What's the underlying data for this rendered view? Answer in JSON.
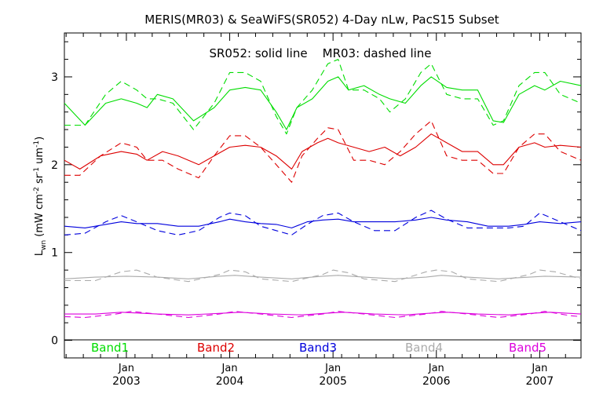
{
  "chart_data": {
    "type": "line",
    "title": "MERIS(MR03) & SeaWiFS(SR052) 4-Day nLw, PacS15 Subset",
    "annotation": "SR052: solid line    MR03: dashed line",
    "ylabel": "L_wn (mW cm^-2 sr^-1 um^-1)",
    "ylim": [
      -0.2,
      3.5
    ],
    "xlim": [
      2002.4,
      2007.4
    ],
    "y_ticks": [
      "0",
      "1",
      "2",
      "3"
    ],
    "x_ticks": [
      {
        "x": 2003.0,
        "month": "Jan",
        "year": "2003"
      },
      {
        "x": 2004.0,
        "month": "Jan",
        "year": "2004"
      },
      {
        "x": 2005.0,
        "month": "Jan",
        "year": "2005"
      },
      {
        "x": 2006.0,
        "month": "Jan",
        "year": "2006"
      },
      {
        "x": 2007.0,
        "month": "Jan",
        "year": "2007"
      }
    ],
    "grid": false,
    "legend_placement": "bottom",
    "series": [
      {
        "name": "Band1",
        "color": "#00dd00",
        "style": "solid",
        "x": [
          2002.4,
          2002.6,
          2002.8,
          2002.95,
          2003.1,
          2003.2,
          2003.3,
          2003.45,
          2003.65,
          2003.85,
          2004.0,
          2004.15,
          2004.3,
          2004.45,
          2004.55,
          2004.65,
          2004.8,
          2004.95,
          2005.05,
          2005.15,
          2005.3,
          2005.45,
          2005.55,
          2005.7,
          2005.85,
          2005.95,
          2006.1,
          2006.25,
          2006.4,
          2006.55,
          2006.65,
          2006.8,
          2006.95,
          2007.05,
          2007.2,
          2007.4
        ],
        "y": [
          2.7,
          2.45,
          2.7,
          2.75,
          2.7,
          2.65,
          2.8,
          2.75,
          2.5,
          2.65,
          2.85,
          2.88,
          2.85,
          2.6,
          2.4,
          2.65,
          2.75,
          2.95,
          3.0,
          2.85,
          2.9,
          2.8,
          2.75,
          2.7,
          2.9,
          3.0,
          2.88,
          2.85,
          2.85,
          2.5,
          2.48,
          2.8,
          2.9,
          2.85,
          2.95,
          2.9
        ]
      },
      {
        "name": "Band1",
        "color": "#00dd00",
        "style": "dashed",
        "x": [
          2002.4,
          2002.6,
          2002.8,
          2002.95,
          2003.1,
          2003.2,
          2003.3,
          2003.45,
          2003.65,
          2003.85,
          2004.0,
          2004.15,
          2004.3,
          2004.45,
          2004.55,
          2004.65,
          2004.8,
          2004.95,
          2005.05,
          2005.15,
          2005.3,
          2005.45,
          2005.55,
          2005.7,
          2005.85,
          2005.95,
          2006.1,
          2006.25,
          2006.4,
          2006.55,
          2006.65,
          2006.8,
          2006.95,
          2007.05,
          2007.2,
          2007.4
        ],
        "y": [
          2.45,
          2.45,
          2.8,
          2.95,
          2.85,
          2.75,
          2.75,
          2.7,
          2.4,
          2.7,
          3.05,
          3.05,
          2.95,
          2.55,
          2.35,
          2.65,
          2.85,
          3.15,
          3.2,
          2.85,
          2.85,
          2.75,
          2.6,
          2.75,
          3.05,
          3.15,
          2.8,
          2.75,
          2.75,
          2.45,
          2.5,
          2.9,
          3.05,
          3.05,
          2.8,
          2.7
        ]
      },
      {
        "name": "Band2",
        "color": "#dd0000",
        "style": "solid",
        "x": [
          2002.4,
          2002.55,
          2002.75,
          2002.95,
          2003.1,
          2003.2,
          2003.35,
          2003.5,
          2003.7,
          2003.85,
          2004.0,
          2004.15,
          2004.3,
          2004.45,
          2004.6,
          2004.7,
          2004.85,
          2004.95,
          2005.05,
          2005.2,
          2005.35,
          2005.5,
          2005.65,
          2005.8,
          2005.95,
          2006.1,
          2006.25,
          2006.4,
          2006.55,
          2006.65,
          2006.8,
          2006.95,
          2007.05,
          2007.2,
          2007.4
        ],
        "y": [
          2.05,
          1.95,
          2.1,
          2.15,
          2.12,
          2.05,
          2.15,
          2.1,
          2.0,
          2.1,
          2.2,
          2.22,
          2.2,
          2.1,
          1.95,
          2.15,
          2.25,
          2.3,
          2.25,
          2.2,
          2.15,
          2.2,
          2.1,
          2.2,
          2.35,
          2.25,
          2.15,
          2.15,
          2.0,
          2.0,
          2.2,
          2.25,
          2.2,
          2.22,
          2.2
        ]
      },
      {
        "name": "Band2",
        "color": "#dd0000",
        "style": "dashed",
        "x": [
          2002.4,
          2002.55,
          2002.75,
          2002.95,
          2003.1,
          2003.2,
          2003.35,
          2003.5,
          2003.7,
          2003.85,
          2004.0,
          2004.15,
          2004.3,
          2004.45,
          2004.6,
          2004.7,
          2004.85,
          2004.95,
          2005.05,
          2005.2,
          2005.35,
          2005.5,
          2005.65,
          2005.8,
          2005.95,
          2006.1,
          2006.25,
          2006.4,
          2006.55,
          2006.65,
          2006.8,
          2006.95,
          2007.05,
          2007.2,
          2007.4
        ],
        "y": [
          1.88,
          1.88,
          2.1,
          2.25,
          2.2,
          2.05,
          2.05,
          1.95,
          1.85,
          2.1,
          2.33,
          2.33,
          2.2,
          2.0,
          1.8,
          2.1,
          2.3,
          2.42,
          2.4,
          2.05,
          2.05,
          2.0,
          2.15,
          2.35,
          2.5,
          2.1,
          2.05,
          2.05,
          1.9,
          1.9,
          2.2,
          2.35,
          2.35,
          2.15,
          2.05
        ]
      },
      {
        "name": "Band3",
        "color": "#0000dd",
        "style": "solid",
        "x": [
          2002.4,
          2002.6,
          2002.8,
          2002.95,
          2003.1,
          2003.3,
          2003.5,
          2003.7,
          2003.9,
          2004.0,
          2004.15,
          2004.3,
          2004.45,
          2004.6,
          2004.75,
          2004.9,
          2005.05,
          2005.2,
          2005.4,
          2005.6,
          2005.8,
          2005.95,
          2006.1,
          2006.3,
          2006.5,
          2006.7,
          2006.85,
          2007.0,
          2007.2,
          2007.4
        ],
        "y": [
          1.3,
          1.28,
          1.32,
          1.35,
          1.33,
          1.33,
          1.3,
          1.3,
          1.35,
          1.38,
          1.35,
          1.33,
          1.32,
          1.28,
          1.35,
          1.37,
          1.38,
          1.35,
          1.35,
          1.35,
          1.37,
          1.4,
          1.37,
          1.35,
          1.3,
          1.3,
          1.32,
          1.35,
          1.33,
          1.35
        ]
      },
      {
        "name": "Band3",
        "color": "#0000dd",
        "style": "dashed",
        "x": [
          2002.4,
          2002.6,
          2002.8,
          2002.95,
          2003.1,
          2003.3,
          2003.5,
          2003.7,
          2003.9,
          2004.0,
          2004.15,
          2004.3,
          2004.45,
          2004.6,
          2004.75,
          2004.9,
          2005.05,
          2005.2,
          2005.4,
          2005.6,
          2005.8,
          2005.95,
          2006.1,
          2006.3,
          2006.5,
          2006.7,
          2006.85,
          2007.0,
          2007.2,
          2007.4
        ],
        "y": [
          1.2,
          1.22,
          1.35,
          1.42,
          1.35,
          1.25,
          1.2,
          1.25,
          1.4,
          1.45,
          1.42,
          1.3,
          1.25,
          1.2,
          1.32,
          1.42,
          1.45,
          1.35,
          1.25,
          1.25,
          1.4,
          1.48,
          1.38,
          1.28,
          1.28,
          1.28,
          1.3,
          1.45,
          1.35,
          1.25
        ]
      },
      {
        "name": "Band4",
        "color": "#aaaaaa",
        "style": "solid",
        "x": [
          2002.4,
          2002.7,
          2003.0,
          2003.3,
          2003.6,
          2003.9,
          2004.05,
          2004.3,
          2004.6,
          2004.9,
          2005.05,
          2005.3,
          2005.6,
          2005.9,
          2006.05,
          2006.3,
          2006.6,
          2006.9,
          2007.05,
          2007.4
        ],
        "y": [
          0.7,
          0.72,
          0.73,
          0.72,
          0.7,
          0.73,
          0.74,
          0.72,
          0.7,
          0.73,
          0.74,
          0.72,
          0.7,
          0.72,
          0.74,
          0.72,
          0.7,
          0.72,
          0.73,
          0.72
        ]
      },
      {
        "name": "Band4",
        "color": "#aaaaaa",
        "style": "dashed",
        "x": [
          2002.4,
          2002.7,
          2002.95,
          2003.1,
          2003.3,
          2003.6,
          2003.9,
          2004.0,
          2004.15,
          2004.3,
          2004.6,
          2004.9,
          2005.0,
          2005.15,
          2005.3,
          2005.6,
          2005.9,
          2006.0,
          2006.15,
          2006.3,
          2006.6,
          2006.9,
          2007.0,
          2007.15,
          2007.4
        ],
        "y": [
          0.68,
          0.68,
          0.78,
          0.8,
          0.72,
          0.67,
          0.75,
          0.8,
          0.78,
          0.7,
          0.67,
          0.75,
          0.8,
          0.77,
          0.7,
          0.67,
          0.78,
          0.8,
          0.78,
          0.7,
          0.67,
          0.75,
          0.8,
          0.78,
          0.7
        ]
      },
      {
        "name": "Band5",
        "color": "#dd00dd",
        "style": "solid",
        "x": [
          2002.4,
          2002.7,
          2002.95,
          2003.3,
          2003.6,
          2003.95,
          2004.1,
          2004.4,
          2004.7,
          2004.95,
          2005.1,
          2005.4,
          2005.7,
          2005.95,
          2006.1,
          2006.4,
          2006.7,
          2006.95,
          2007.1,
          2007.4
        ],
        "y": [
          0.3,
          0.3,
          0.32,
          0.3,
          0.29,
          0.31,
          0.32,
          0.3,
          0.29,
          0.31,
          0.32,
          0.3,
          0.29,
          0.31,
          0.32,
          0.3,
          0.29,
          0.31,
          0.32,
          0.3
        ]
      },
      {
        "name": "Band5",
        "color": "#dd00dd",
        "style": "dashed",
        "x": [
          2002.4,
          2002.6,
          2002.9,
          2003.05,
          2003.3,
          2003.6,
          2003.9,
          2004.05,
          2004.3,
          2004.6,
          2004.9,
          2005.05,
          2005.3,
          2005.6,
          2005.9,
          2006.05,
          2006.3,
          2006.6,
          2006.9,
          2007.05,
          2007.3,
          2007.4
        ],
        "y": [
          0.27,
          0.26,
          0.3,
          0.33,
          0.3,
          0.26,
          0.3,
          0.33,
          0.3,
          0.26,
          0.3,
          0.33,
          0.3,
          0.26,
          0.3,
          0.33,
          0.3,
          0.26,
          0.3,
          0.33,
          0.28,
          0.27
        ]
      }
    ],
    "legend": [
      {
        "label": "Band1",
        "color": "#00dd00"
      },
      {
        "label": "Band2",
        "color": "#dd0000"
      },
      {
        "label": "Band3",
        "color": "#0000dd"
      },
      {
        "label": "Band4",
        "color": "#aaaaaa"
      },
      {
        "label": "Band5",
        "color": "#dd00dd"
      }
    ]
  }
}
